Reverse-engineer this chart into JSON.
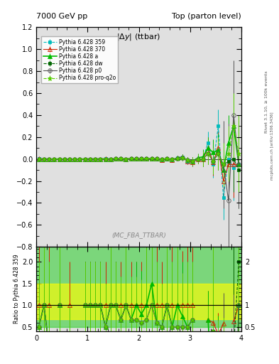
{
  "title_left": "7000 GeV pp",
  "title_right": "Top (parton level)",
  "watermark": "(MC_FBA_TTBAR)",
  "rivet_text": "Rivet 3.1.10, ≥ 100k events",
  "arxiv_text": "mcplots.cern.ch [arXiv:1306.3436]",
  "xlim": [
    0,
    4
  ],
  "ylim_main": [
    -0.8,
    1.2
  ],
  "ylim_ratio": [
    0.4,
    2.35
  ],
  "bg_color": "#e0e0e0",
  "series": [
    {
      "label": "Pythia 6.428 359",
      "color": "#00bbbb",
      "linestyle": "--",
      "marker": "s",
      "markersize": 3,
      "linewidth": 0.8,
      "is_ref": true,
      "mfc": "#00bbbb",
      "values": [
        0.002,
        0.001,
        0.001,
        0.0,
        0.001,
        0.0,
        0.001,
        0.0,
        0.0,
        0.001,
        0.001,
        0.001,
        0.001,
        0.002,
        0.001,
        0.002,
        0.003,
        0.001,
        0.003,
        0.003,
        0.005,
        0.003,
        0.002,
        0.005,
        -0.01,
        0.005,
        -0.01,
        0.01,
        0.02,
        -0.02,
        -0.03,
        0.0,
        0.0,
        0.15,
        -0.05,
        0.3,
        -0.35,
        0.0,
        -0.08,
        -0.05
      ],
      "errors": [
        0.003,
        0.002,
        0.002,
        0.002,
        0.002,
        0.001,
        0.001,
        0.001,
        0.001,
        0.001,
        0.001,
        0.001,
        0.001,
        0.002,
        0.002,
        0.002,
        0.003,
        0.003,
        0.003,
        0.003,
        0.005,
        0.005,
        0.006,
        0.007,
        0.01,
        0.01,
        0.015,
        0.02,
        0.025,
        0.03,
        0.04,
        0.04,
        0.07,
        0.1,
        0.12,
        0.15,
        0.2,
        0.25,
        0.3,
        0.35
      ]
    },
    {
      "label": "Pythia 6.428 370",
      "color": "#cc2200",
      "linestyle": "-",
      "marker": "^",
      "markersize": 4,
      "linewidth": 0.8,
      "is_ref": false,
      "mfc": "none",
      "values": [
        0.002,
        0.001,
        0.001,
        0.0,
        0.001,
        0.0,
        0.001,
        0.0,
        0.0,
        0.001,
        0.001,
        0.001,
        0.001,
        0.002,
        0.001,
        0.002,
        0.003,
        0.001,
        0.003,
        0.003,
        0.005,
        0.003,
        0.002,
        0.005,
        -0.01,
        0.005,
        -0.01,
        0.01,
        0.02,
        -0.02,
        -0.03,
        0.0,
        0.0,
        0.1,
        -0.03,
        0.1,
        -0.2,
        -0.05,
        -0.05,
        -0.05
      ],
      "errors": [
        0.003,
        0.002,
        0.002,
        0.002,
        0.002,
        0.001,
        0.001,
        0.001,
        0.001,
        0.001,
        0.001,
        0.001,
        0.001,
        0.002,
        0.002,
        0.002,
        0.003,
        0.003,
        0.003,
        0.003,
        0.005,
        0.005,
        0.006,
        0.007,
        0.01,
        0.01,
        0.015,
        0.02,
        0.025,
        0.03,
        0.04,
        0.04,
        0.07,
        0.1,
        0.12,
        0.15,
        0.2,
        0.25,
        0.3,
        0.35
      ]
    },
    {
      "label": "Pythia 6.428 a",
      "color": "#00bb00",
      "linestyle": "-",
      "marker": "^",
      "markersize": 4,
      "linewidth": 1.2,
      "is_ref": false,
      "mfc": "#00bb00",
      "values": [
        0.001,
        0.001,
        0.0,
        0.0,
        0.001,
        0.0,
        0.0,
        0.0,
        0.0,
        0.001,
        0.001,
        0.001,
        0.001,
        0.001,
        0.001,
        0.002,
        0.002,
        0.001,
        0.002,
        0.003,
        0.004,
        0.003,
        0.003,
        0.003,
        -0.005,
        0.005,
        -0.005,
        0.01,
        0.015,
        -0.01,
        -0.02,
        0.01,
        0.02,
        0.1,
        0.06,
        0.08,
        -0.1,
        0.15,
        0.3,
        -0.05
      ],
      "errors": [
        0.003,
        0.002,
        0.002,
        0.002,
        0.002,
        0.001,
        0.001,
        0.001,
        0.001,
        0.001,
        0.001,
        0.001,
        0.001,
        0.002,
        0.002,
        0.002,
        0.003,
        0.003,
        0.003,
        0.003,
        0.005,
        0.005,
        0.006,
        0.007,
        0.01,
        0.01,
        0.015,
        0.02,
        0.025,
        0.03,
        0.04,
        0.04,
        0.07,
        0.1,
        0.12,
        0.15,
        0.2,
        0.25,
        0.3,
        0.35
      ]
    },
    {
      "label": "Pythia 6.428 dw",
      "color": "#006600",
      "linestyle": "--",
      "marker": "s",
      "markersize": 3,
      "linewidth": 0.8,
      "is_ref": false,
      "mfc": "#006600",
      "values": [
        0.001,
        0.001,
        0.0,
        0.0,
        0.001,
        0.0,
        0.0,
        0.0,
        0.0,
        0.001,
        0.001,
        0.001,
        0.001,
        0.001,
        0.001,
        0.002,
        0.002,
        0.001,
        0.002,
        0.002,
        0.003,
        0.002,
        0.002,
        0.003,
        -0.005,
        0.005,
        -0.005,
        0.005,
        0.01,
        -0.01,
        -0.02,
        0.0,
        0.0,
        0.05,
        -0.02,
        0.05,
        -0.05,
        -0.02,
        0.0,
        -0.1
      ],
      "errors": [
        0.003,
        0.002,
        0.002,
        0.002,
        0.002,
        0.001,
        0.001,
        0.001,
        0.001,
        0.001,
        0.001,
        0.001,
        0.001,
        0.002,
        0.002,
        0.002,
        0.003,
        0.003,
        0.003,
        0.003,
        0.005,
        0.005,
        0.006,
        0.007,
        0.01,
        0.01,
        0.015,
        0.02,
        0.025,
        0.03,
        0.04,
        0.04,
        0.07,
        0.1,
        0.12,
        0.15,
        0.2,
        0.25,
        0.3,
        0.35
      ]
    },
    {
      "label": "Pythia 6.428 p0",
      "color": "#555555",
      "linestyle": "-",
      "marker": "o",
      "markersize": 4,
      "linewidth": 0.8,
      "is_ref": false,
      "mfc": "none",
      "values": [
        0.001,
        0.001,
        0.0,
        0.0,
        0.001,
        0.0,
        0.0,
        0.0,
        0.0,
        0.001,
        0.001,
        0.001,
        0.001,
        0.001,
        0.001,
        0.002,
        0.002,
        0.001,
        0.002,
        0.002,
        0.003,
        0.002,
        0.002,
        0.003,
        -0.005,
        0.005,
        -0.005,
        0.005,
        0.01,
        -0.01,
        -0.02,
        0.0,
        0.0,
        0.05,
        -0.02,
        0.05,
        -0.05,
        -0.38,
        0.4,
        -0.05
      ],
      "errors": [
        0.003,
        0.002,
        0.002,
        0.002,
        0.002,
        0.001,
        0.001,
        0.001,
        0.001,
        0.001,
        0.001,
        0.001,
        0.001,
        0.002,
        0.002,
        0.002,
        0.003,
        0.003,
        0.003,
        0.003,
        0.005,
        0.005,
        0.006,
        0.007,
        0.01,
        0.01,
        0.015,
        0.02,
        0.025,
        0.03,
        0.04,
        0.04,
        0.07,
        0.1,
        0.12,
        0.15,
        0.4,
        0.7,
        0.5,
        0.4
      ]
    },
    {
      "label": "Pythia 6.428 pro-q2o",
      "color": "#55cc00",
      "linestyle": "--",
      "marker": "*",
      "markersize": 5,
      "linewidth": 0.8,
      "is_ref": false,
      "mfc": "#55cc00",
      "values": [
        0.001,
        0.001,
        0.0,
        0.0,
        0.001,
        0.0,
        0.0,
        0.0,
        0.0,
        0.001,
        0.001,
        0.001,
        0.001,
        0.001,
        0.001,
        0.002,
        0.002,
        0.001,
        0.002,
        0.002,
        0.003,
        0.002,
        0.002,
        0.003,
        -0.005,
        0.005,
        -0.005,
        0.005,
        0.01,
        -0.01,
        -0.02,
        0.0,
        0.0,
        0.05,
        -0.02,
        0.05,
        -0.05,
        0.05,
        0.3,
        0.05
      ],
      "errors": [
        0.003,
        0.002,
        0.002,
        0.002,
        0.002,
        0.001,
        0.001,
        0.001,
        0.001,
        0.001,
        0.001,
        0.001,
        0.001,
        0.002,
        0.002,
        0.002,
        0.003,
        0.003,
        0.003,
        0.003,
        0.005,
        0.005,
        0.006,
        0.007,
        0.01,
        0.01,
        0.015,
        0.02,
        0.025,
        0.03,
        0.04,
        0.04,
        0.07,
        0.1,
        0.12,
        0.15,
        0.2,
        0.25,
        0.3,
        0.35
      ]
    }
  ]
}
